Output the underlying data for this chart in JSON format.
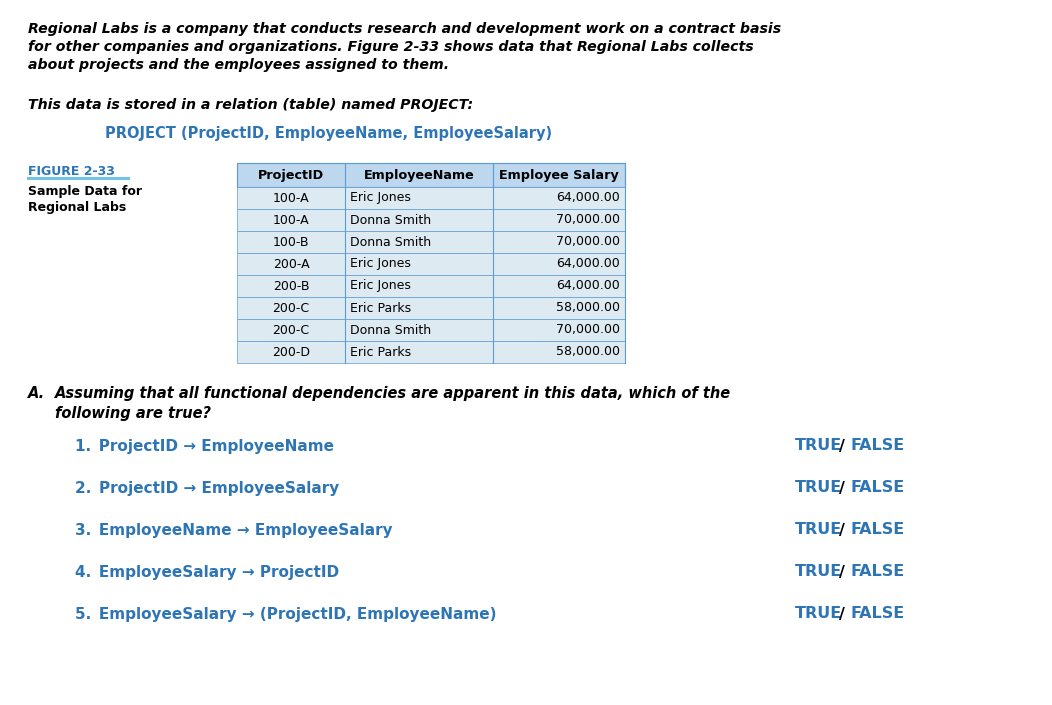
{
  "bg_color": "#ffffff",
  "intro_line1": "Regional Labs is a company that conducts research and development work on a contract basis",
  "intro_line2": "for other companies and organizations. Figure 2-33 shows data that Regional Labs collects",
  "intro_line3": "about projects and the employees assigned to them.",
  "relation_label": "This data is stored in a relation (table) named PROJECT:",
  "relation_name": "PROJECT (ProjectID, EmployeeName, EmployeeSalary)",
  "figure_label": "FIGURE 2-33",
  "figure_caption_line1": "Sample Data for",
  "figure_caption_line2": "Regional Labs",
  "table_headers": [
    "ProjectID",
    "EmployeeName",
    "Employee Salary"
  ],
  "table_rows": [
    [
      "100-A",
      "Eric Jones",
      "64,000.00"
    ],
    [
      "100-A",
      "Donna Smith",
      "70,000.00"
    ],
    [
      "100-B",
      "Donna Smith",
      "70,000.00"
    ],
    [
      "200-A",
      "Eric Jones",
      "64,000.00"
    ],
    [
      "200-B",
      "Eric Jones",
      "64,000.00"
    ],
    [
      "200-C",
      "Eric Parks",
      "58,000.00"
    ],
    [
      "200-C",
      "Donna Smith",
      "70,000.00"
    ],
    [
      "200-D",
      "Eric Parks",
      "58,000.00"
    ]
  ],
  "question_letter": "A.",
  "question_line1": "Assuming that all functional dependencies are apparent in this data, which of the",
  "question_line2": "following are true?",
  "dep_items": [
    "1. ProjectID → EmployeeName",
    "2. ProjectID → EmployeeSalary",
    "3. EmployeeName → EmployeeSalary",
    "4. EmployeeSalary → ProjectID",
    "5. EmployeeSalary → (ProjectID, EmployeeName)"
  ],
  "blue_color": "#2E75B6",
  "dark_blue": "#1F3864",
  "table_header_bg": "#BDD7EE",
  "table_row_bg": "#DEEAF1",
  "table_border_color": "#5B9BD5",
  "underline_color": "#70C4E8"
}
